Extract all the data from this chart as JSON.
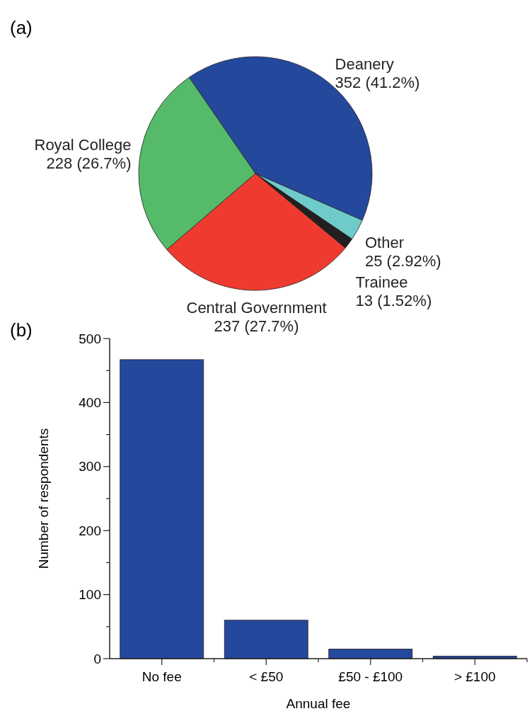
{
  "chart_data": [
    {
      "type": "pie",
      "title": "(a)",
      "categories": [
        "Deanery",
        "Other",
        "Trainee",
        "Central Government",
        "Royal College"
      ],
      "values": [
        352,
        25,
        13,
        237,
        228
      ],
      "value_labels": [
        "352 (41.2%)",
        "25 (2.92%)",
        "13 (1.52%)",
        "237 (27.7%)",
        "228 (26.7%)"
      ],
      "colors": [
        "#24489c",
        "#6ecbc9",
        "#231f20",
        "#ef3b2f",
        "#55bb6a"
      ]
    },
    {
      "type": "bar",
      "title": "(b)",
      "categories": [
        "No fee",
        "< £50",
        "£50 - £100",
        "> £100"
      ],
      "values": [
        467,
        60,
        15,
        4
      ],
      "color": "#24489c",
      "xlabel": "Annual fee",
      "ylabel": "Number of respondents",
      "ylim": [
        0,
        500
      ],
      "yticks": [
        0,
        {
          "value": 50,
          "label": null
        },
        100,
        {
          "value": 150,
          "label": null
        },
        200,
        {
          "value": 250,
          "label": null
        },
        300,
        {
          "value": 350,
          "label": null
        },
        400,
        {
          "value": 450,
          "label": null
        },
        500
      ]
    }
  ]
}
